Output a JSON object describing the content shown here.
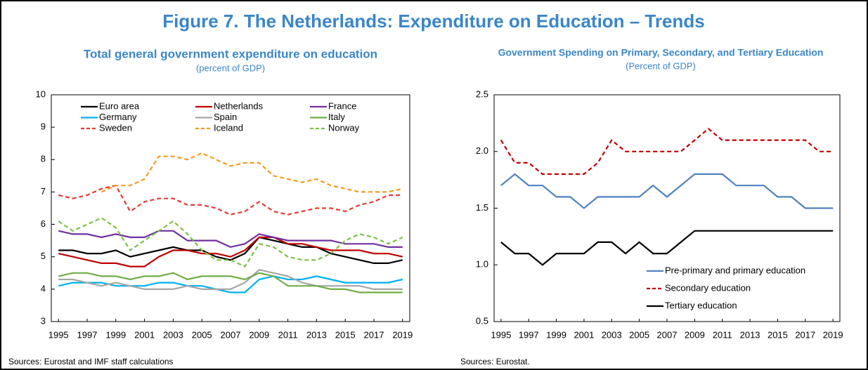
{
  "figure_title": "Figure 7. The Netherlands: Expenditure on Education – Trends",
  "chart_data": [
    {
      "type": "line",
      "title": "Total general government expenditure on education",
      "subtitle": "(percent of GDP)",
      "source": "Sources: Eurostat and IMF staff calculations",
      "x": [
        1995,
        1996,
        1997,
        1998,
        1999,
        2000,
        2001,
        2002,
        2003,
        2004,
        2005,
        2006,
        2007,
        2008,
        2009,
        2010,
        2011,
        2012,
        2013,
        2014,
        2015,
        2016,
        2017,
        2018,
        2019
      ],
      "xlim": [
        1994.5,
        2019.5
      ],
      "xticks": [
        1995,
        1997,
        1999,
        2001,
        2003,
        2005,
        2007,
        2009,
        2011,
        2013,
        2015,
        2017,
        2019
      ],
      "ylim": [
        3,
        10
      ],
      "yticks": [
        3,
        4,
        5,
        6,
        7,
        8,
        9,
        10
      ],
      "legend": "upper center",
      "legend_columns": 3,
      "series": [
        {
          "name": "Euro area",
          "color": "#000000",
          "dashed": false,
          "values": [
            5.2,
            5.2,
            5.1,
            5.1,
            5.2,
            5.0,
            5.1,
            5.2,
            5.3,
            5.2,
            5.2,
            5.0,
            4.9,
            5.1,
            5.6,
            5.5,
            5.4,
            5.3,
            5.3,
            5.1,
            5.0,
            4.9,
            4.8,
            4.8,
            4.9
          ]
        },
        {
          "name": "Netherlands",
          "color": "#c00000",
          "dashed": false,
          "values": [
            5.1,
            5.0,
            4.9,
            4.8,
            4.8,
            4.7,
            4.7,
            5.0,
            5.2,
            5.2,
            5.1,
            5.1,
            5.0,
            5.2,
            5.6,
            5.6,
            5.4,
            5.4,
            5.3,
            5.2,
            5.2,
            5.2,
            5.1,
            5.1,
            5.0
          ]
        },
        {
          "name": "France",
          "color": "#7030a0",
          "dashed": false,
          "values": [
            5.8,
            5.7,
            5.7,
            5.6,
            5.7,
            5.6,
            5.6,
            5.8,
            5.8,
            5.5,
            5.5,
            5.5,
            5.3,
            5.4,
            5.7,
            5.6,
            5.5,
            5.5,
            5.5,
            5.5,
            5.4,
            5.4,
            5.4,
            5.3,
            5.3
          ]
        },
        {
          "name": "Germany",
          "color": "#00b0f0",
          "dashed": false,
          "values": [
            4.1,
            4.2,
            4.2,
            4.2,
            4.1,
            4.1,
            4.1,
            4.2,
            4.2,
            4.1,
            4.1,
            4.0,
            3.9,
            3.9,
            4.3,
            4.4,
            4.3,
            4.3,
            4.4,
            4.3,
            4.2,
            4.2,
            4.2,
            4.2,
            4.3
          ]
        },
        {
          "name": "Spain",
          "color": "#a6a6a6",
          "dashed": false,
          "values": [
            4.3,
            4.3,
            4.2,
            4.1,
            4.2,
            4.1,
            4.0,
            4.0,
            4.0,
            4.1,
            4.0,
            4.0,
            4.0,
            4.2,
            4.6,
            4.5,
            4.4,
            4.2,
            4.1,
            4.1,
            4.1,
            4.1,
            4.0,
            4.0,
            4.0
          ]
        },
        {
          "name": "Italy",
          "color": "#70ad47",
          "dashed": false,
          "values": [
            4.4,
            4.5,
            4.5,
            4.4,
            4.4,
            4.3,
            4.4,
            4.4,
            4.5,
            4.3,
            4.4,
            4.4,
            4.4,
            4.3,
            4.5,
            4.4,
            4.1,
            4.1,
            4.1,
            4.0,
            4.0,
            3.9,
            3.9,
            3.9,
            3.9
          ]
        },
        {
          "name": "Sweden",
          "color": "#e03c31",
          "dashed": true,
          "values": [
            6.9,
            6.8,
            6.9,
            7.1,
            7.2,
            6.4,
            6.7,
            6.8,
            6.8,
            6.6,
            6.6,
            6.5,
            6.3,
            6.4,
            6.7,
            6.4,
            6.3,
            6.4,
            6.5,
            6.5,
            6.4,
            6.6,
            6.7,
            6.9,
            6.9
          ]
        },
        {
          "name": "Iceland",
          "color": "#f79a1e",
          "dashed": true,
          "values": [
            null,
            null,
            null,
            7.0,
            7.2,
            7.2,
            7.4,
            8.1,
            8.1,
            8.0,
            8.2,
            8.0,
            7.8,
            7.9,
            7.9,
            7.5,
            7.4,
            7.3,
            7.4,
            7.2,
            7.1,
            7.0,
            7.0,
            7.0,
            7.1
          ]
        },
        {
          "name": "Norway",
          "color": "#7bc142",
          "dashed": true,
          "values": [
            6.1,
            5.8,
            6.0,
            6.2,
            5.9,
            5.2,
            5.5,
            5.8,
            6.1,
            5.7,
            5.2,
            4.9,
            4.9,
            4.7,
            5.4,
            5.3,
            5.0,
            4.9,
            4.9,
            5.1,
            5.5,
            5.7,
            5.6,
            5.4,
            5.6
          ]
        }
      ]
    },
    {
      "type": "line",
      "title": "Government Spending on Primary, Secondary, and Tertiary Education",
      "subtitle": "(Percent of GDP)",
      "source": "Sources: Eurostat.",
      "x": [
        1995,
        1996,
        1997,
        1998,
        1999,
        2000,
        2001,
        2002,
        2003,
        2004,
        2005,
        2006,
        2007,
        2008,
        2009,
        2010,
        2011,
        2012,
        2013,
        2014,
        2015,
        2016,
        2017,
        2018,
        2019
      ],
      "xlim": [
        1994.5,
        2019.5
      ],
      "xticks": [
        1995,
        1997,
        1999,
        2001,
        2003,
        2005,
        2007,
        2009,
        2011,
        2013,
        2015,
        2017,
        2019
      ],
      "ylim": [
        0.5,
        2.5
      ],
      "yticks": [
        0.5,
        {
          "value": 1,
          "label": "1.0"
        },
        1.5,
        {
          "value": 2,
          "label": "2.0"
        },
        2.5
      ],
      "legend": "lower right",
      "legend_columns": 1,
      "series": [
        {
          "name": "Pre-primary and primary education",
          "color": "#4f81bd",
          "dashed": false,
          "values": [
            1.7,
            1.8,
            1.7,
            1.7,
            1.6,
            1.6,
            1.5,
            1.6,
            1.6,
            1.6,
            1.6,
            1.7,
            1.6,
            1.7,
            1.8,
            1.8,
            1.8,
            1.7,
            1.7,
            1.7,
            1.6,
            1.6,
            1.5,
            1.5,
            1.5
          ]
        },
        {
          "name": "Secondary education",
          "color": "#c00000",
          "dashed": true,
          "values": [
            2.1,
            1.9,
            1.9,
            1.8,
            1.8,
            1.8,
            1.8,
            1.9,
            2.1,
            2.0,
            2.0,
            2.0,
            2.0,
            2.0,
            2.1,
            2.2,
            2.1,
            2.1,
            2.1,
            2.1,
            2.1,
            2.1,
            2.1,
            2.0,
            2.0
          ]
        },
        {
          "name": "Tertiary education",
          "color": "#000000",
          "dashed": false,
          "values": [
            1.2,
            1.1,
            1.1,
            1.0,
            1.1,
            1.1,
            1.1,
            1.2,
            1.2,
            1.1,
            1.2,
            1.1,
            1.1,
            1.2,
            1.3,
            1.3,
            1.3,
            1.3,
            1.3,
            1.3,
            1.3,
            1.3,
            1.3,
            1.3,
            1.3
          ]
        }
      ]
    }
  ]
}
